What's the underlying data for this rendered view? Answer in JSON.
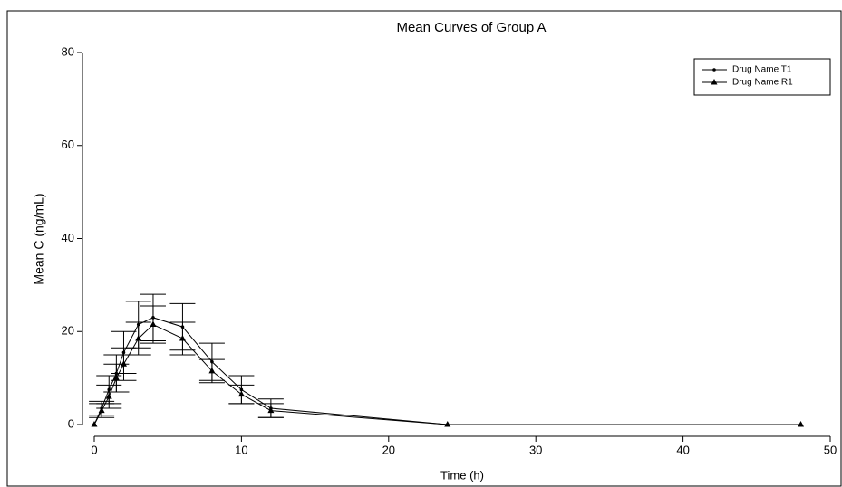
{
  "chart_data": {
    "type": "line",
    "title": "Mean Curves of Group A",
    "x_label": "Time (h)",
    "y_label": "Mean C (ng/mL)",
    "x": [
      0,
      0.5,
      1,
      1.5,
      2,
      3,
      4,
      6,
      8,
      10,
      12,
      24,
      48
    ],
    "series": [
      {
        "name": "Drug Name T1",
        "color": "#000000",
        "marker": "dot",
        "values": [
          0,
          3.5,
          7.5,
          11,
          15.5,
          21.5,
          23,
          21,
          13.5,
          7.5,
          3.5,
          0,
          0
        ],
        "errors": [
          0,
          1.5,
          3,
          4,
          4.5,
          5,
          5,
          5,
          4,
          3,
          2,
          0,
          0
        ]
      },
      {
        "name": "Drug Name R1",
        "color": "#000000",
        "marker": "triangle",
        "values": [
          0,
          3,
          6,
          10,
          13,
          18.5,
          21.5,
          18.5,
          11.5,
          6.5,
          3,
          0,
          0
        ],
        "errors": [
          0,
          1.5,
          2.5,
          3,
          3.5,
          3.5,
          4,
          3.5,
          2.5,
          2,
          1.5,
          0,
          0
        ]
      }
    ],
    "xlim": [
      0,
      50
    ],
    "ylim": [
      0,
      80
    ],
    "xticks": [
      0,
      10,
      20,
      30,
      40,
      50
    ],
    "yticks": [
      0,
      20,
      40,
      60,
      80
    ],
    "legend": "upper right"
  }
}
